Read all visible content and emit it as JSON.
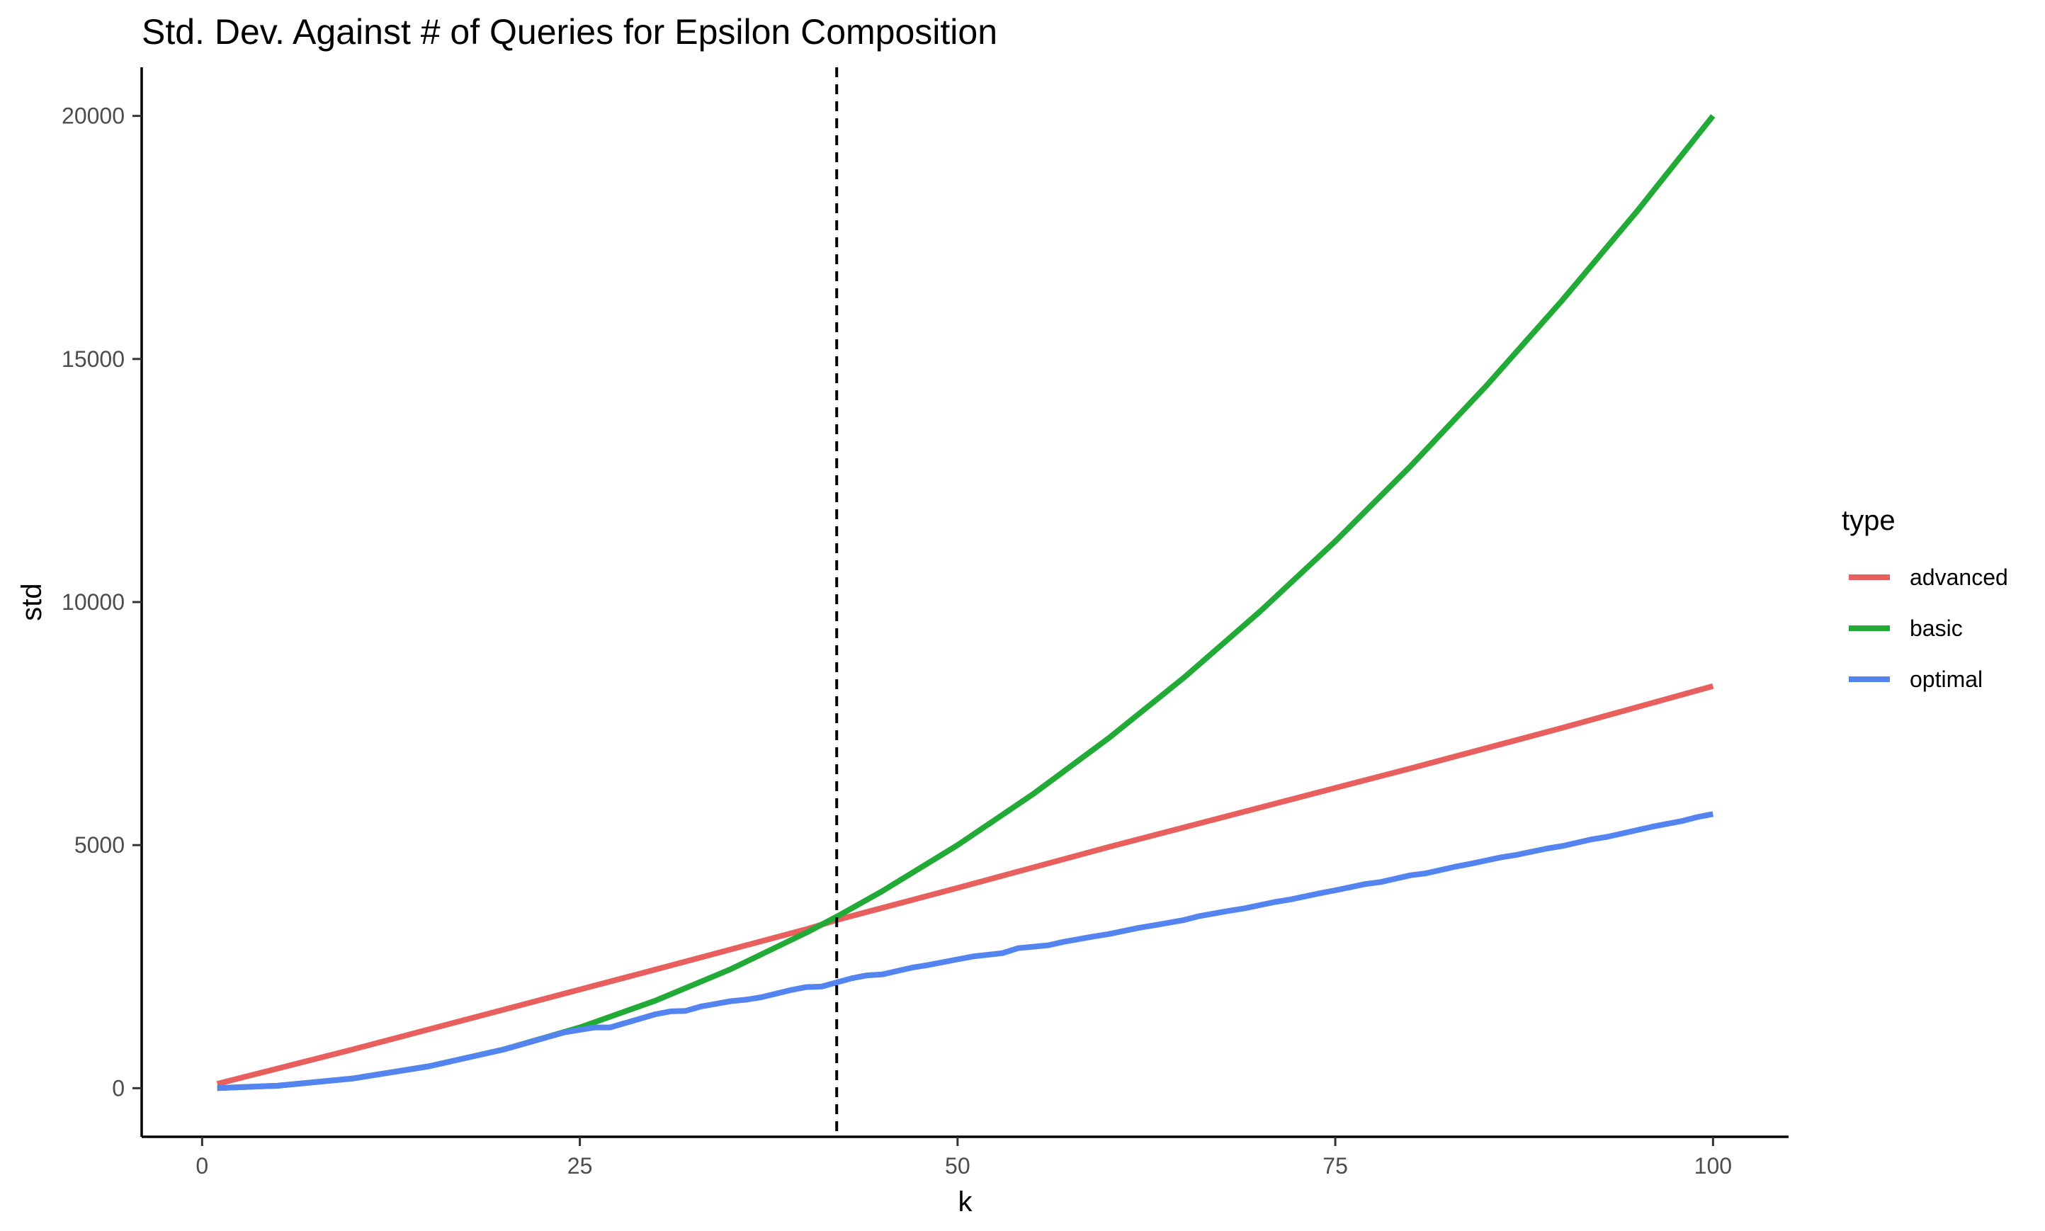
{
  "chart_data": {
    "type": "line",
    "title": "Std. Dev. Against # of Queries for Epsilon Composition",
    "xlabel": "k",
    "ylabel": "std",
    "xlim": [
      -4,
      105
    ],
    "ylim": [
      -1000,
      21000
    ],
    "x_ticks": [
      0,
      25,
      50,
      75,
      100
    ],
    "y_ticks": [
      0,
      5000,
      10000,
      15000,
      20000
    ],
    "grid": false,
    "reference_line": {
      "axis": "x",
      "value": 42,
      "style": "dashed",
      "color": "#000000"
    },
    "legend": {
      "title": "type",
      "position": "right"
    },
    "series": [
      {
        "name": "advanced",
        "color": "#E8605D",
        "x": [
          1,
          10,
          20,
          30,
          40,
          42,
          50,
          60,
          70,
          80,
          90,
          100
        ],
        "y": [
          90,
          800,
          1620,
          2440,
          3270,
          3460,
          4120,
          4960,
          5770,
          6580,
          7410,
          8270
        ]
      },
      {
        "name": "basic",
        "color": "#22AA37",
        "x": [
          1,
          5,
          10,
          15,
          20,
          25,
          30,
          35,
          40,
          42,
          45,
          50,
          55,
          60,
          65,
          70,
          75,
          80,
          85,
          90,
          95,
          100
        ],
        "y": [
          2,
          50,
          200,
          450,
          800,
          1250,
          1800,
          2450,
          3200,
          3528,
          4050,
          5000,
          6050,
          7200,
          8450,
          9800,
          11250,
          12800,
          14450,
          16200,
          18050,
          20000
        ]
      },
      {
        "name": "optimal",
        "color": "#5384EF",
        "x": [
          1,
          5,
          10,
          15,
          20,
          24,
          26,
          27,
          28,
          30,
          31,
          32,
          33,
          35,
          36,
          37,
          39,
          40,
          41,
          43,
          44,
          45,
          47,
          48,
          50,
          51,
          53,
          54,
          56,
          57,
          59,
          60,
          62,
          63,
          65,
          66,
          68,
          69,
          71,
          72,
          74,
          75,
          77,
          78,
          80,
          81,
          83,
          84,
          86,
          87,
          89,
          90,
          92,
          93,
          95,
          96,
          98,
          99,
          100
        ],
        "y": [
          2,
          50,
          200,
          450,
          800,
          1150,
          1250,
          1250,
          1340,
          1520,
          1580,
          1590,
          1680,
          1790,
          1820,
          1870,
          2020,
          2080,
          2090,
          2260,
          2320,
          2340,
          2480,
          2530,
          2650,
          2710,
          2780,
          2880,
          2940,
          3010,
          3120,
          3170,
          3300,
          3350,
          3460,
          3540,
          3650,
          3700,
          3830,
          3880,
          4010,
          4070,
          4200,
          4240,
          4380,
          4420,
          4560,
          4620,
          4750,
          4800,
          4930,
          4980,
          5120,
          5170,
          5310,
          5380,
          5500,
          5580,
          5640
        ]
      }
    ]
  }
}
